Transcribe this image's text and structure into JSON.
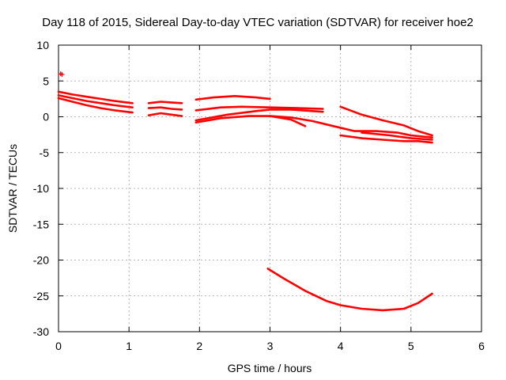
{
  "chart_data": {
    "type": "scatter",
    "title": "Day 118 of 2015, Sidereal Day-to-day VTEC variation (SDTVAR) for receiver hoe2",
    "xlabel": "GPS time / hours",
    "ylabel": "SDTVAR / TECUs",
    "xlim": [
      0,
      6
    ],
    "ylim": [
      -30,
      10
    ],
    "xticks": [
      "0",
      "1",
      "2",
      "3",
      "4",
      "5",
      "6"
    ],
    "yticks": [
      "10",
      "5",
      "0",
      "-5",
      "-10",
      "-15",
      "-20",
      "-25",
      "-30"
    ],
    "grid": true,
    "color": "#ff0000",
    "series": [
      {
        "x": [
          0.0,
          0.2,
          0.4,
          0.6,
          0.8,
          1.05
        ],
        "y": [
          3.5,
          3.1,
          2.8,
          2.5,
          2.2,
          1.9
        ]
      },
      {
        "x": [
          0.0,
          0.2,
          0.4,
          0.6,
          0.8,
          1.05
        ],
        "y": [
          3.0,
          2.6,
          2.2,
          1.9,
          1.6,
          1.3
        ]
      },
      {
        "x": [
          0.0,
          0.2,
          0.4,
          0.6,
          0.8,
          1.05
        ],
        "y": [
          2.6,
          2.1,
          1.6,
          1.2,
          0.9,
          0.6
        ]
      },
      {
        "x": [
          1.28,
          1.45,
          1.6,
          1.75
        ],
        "y": [
          1.9,
          2.1,
          2.0,
          1.9
        ]
      },
      {
        "x": [
          1.28,
          1.45,
          1.6,
          1.75
        ],
        "y": [
          1.2,
          1.3,
          1.1,
          1.0
        ]
      },
      {
        "x": [
          1.28,
          1.45,
          1.6,
          1.75
        ],
        "y": [
          0.2,
          0.5,
          0.3,
          0.1
        ]
      },
      {
        "x": [
          1.95,
          2.2,
          2.5,
          2.8,
          3.0
        ],
        "y": [
          2.4,
          2.7,
          2.9,
          2.7,
          2.5
        ]
      },
      {
        "x": [
          1.95,
          2.3,
          2.6,
          3.0,
          3.4,
          3.75
        ],
        "y": [
          0.9,
          1.3,
          1.4,
          1.3,
          1.2,
          1.1
        ]
      },
      {
        "x": [
          1.95,
          2.4,
          2.8,
          3.0,
          3.3,
          3.6,
          3.75
        ],
        "y": [
          -0.5,
          0.3,
          0.8,
          1.0,
          1.0,
          0.8,
          0.7
        ]
      },
      {
        "x": [
          1.95,
          2.3,
          2.7,
          3.0,
          3.3,
          3.5
        ],
        "y": [
          -0.8,
          -0.2,
          0.1,
          0.1,
          -0.4,
          -1.3
        ]
      },
      {
        "x": [
          3.0,
          3.3,
          3.6,
          3.9,
          4.2,
          4.5,
          4.8,
          5.0,
          5.3
        ],
        "y": [
          0.1,
          -0.1,
          -0.6,
          -1.3,
          -2.0,
          -2.0,
          -2.2,
          -2.6,
          -2.9
        ]
      },
      {
        "x": [
          4.0,
          4.3,
          4.6,
          4.9,
          5.1,
          5.3
        ],
        "y": [
          1.4,
          0.3,
          -0.5,
          -1.2,
          -2.0,
          -2.6
        ]
      },
      {
        "x": [
          4.0,
          4.3,
          4.6,
          4.9,
          5.1,
          5.3
        ],
        "y": [
          -2.6,
          -3.0,
          -3.2,
          -3.4,
          -3.4,
          -3.6
        ]
      },
      {
        "x": [
          4.3,
          4.7,
          5.0,
          5.3
        ],
        "y": [
          -2.2,
          -2.6,
          -3.0,
          -3.2
        ]
      },
      {
        "x": [
          2.97,
          3.2,
          3.5,
          3.8,
          4.0,
          4.3,
          4.6,
          4.9,
          5.1,
          5.3
        ],
        "y": [
          -21.2,
          -22.6,
          -24.3,
          -25.7,
          -26.3,
          -26.8,
          -27.0,
          -26.8,
          -26.0,
          -24.7
        ]
      },
      {
        "x": [
          0.03,
          0.05
        ],
        "y": [
          6.0,
          5.9
        ],
        "markers": true
      }
    ]
  }
}
